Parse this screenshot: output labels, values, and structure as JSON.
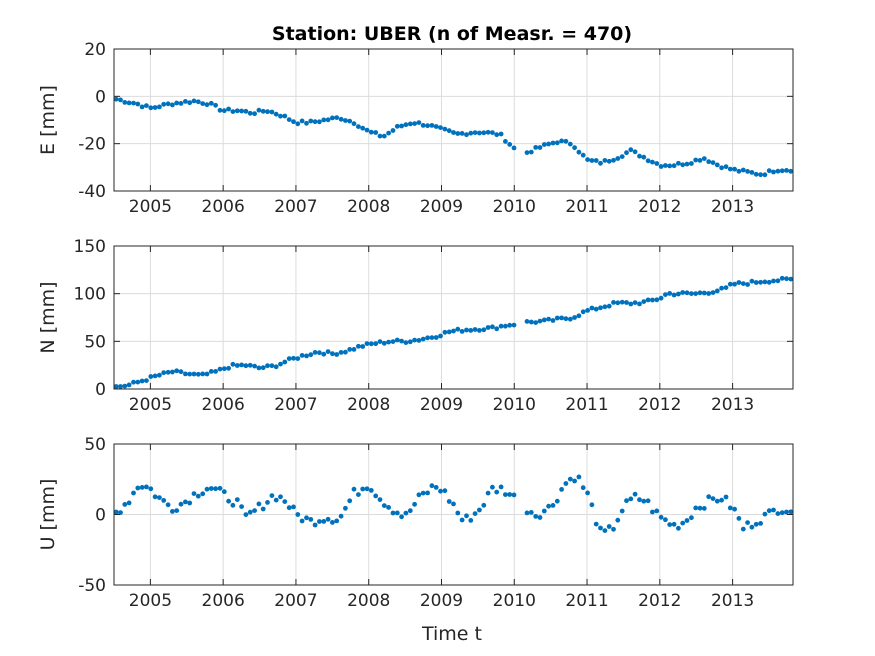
{
  "chart_data": {
    "type": "scatter",
    "title": "Station: UBER (n of Measr. = 470)",
    "xlabel": "Time t",
    "marker_color": "#0072BD",
    "xlim": [
      2004.5,
      2013.83
    ],
    "x_ticks": [
      2005,
      2006,
      2007,
      2008,
      2009,
      2010,
      2011,
      2012,
      2013
    ],
    "grid": true,
    "panels": [
      {
        "id": "E",
        "ylabel": "E [mm]",
        "ylim": [
          -40,
          20
        ],
        "y_ticks": [
          -40,
          -20,
          0,
          20
        ],
        "anchors": [
          [
            2004.5,
            -1
          ],
          [
            2004.8,
            -3
          ],
          [
            2005.0,
            -5
          ],
          [
            2005.3,
            -3
          ],
          [
            2005.6,
            -2
          ],
          [
            2005.8,
            -3
          ],
          [
            2006.0,
            -6
          ],
          [
            2006.2,
            -6
          ],
          [
            2006.4,
            -7
          ],
          [
            2006.6,
            -6
          ],
          [
            2006.8,
            -8
          ],
          [
            2007.0,
            -11
          ],
          [
            2007.2,
            -11
          ],
          [
            2007.4,
            -10
          ],
          [
            2007.6,
            -9
          ],
          [
            2007.8,
            -11
          ],
          [
            2008.0,
            -15
          ],
          [
            2008.2,
            -17
          ],
          [
            2008.4,
            -13
          ],
          [
            2008.6,
            -11
          ],
          [
            2008.8,
            -12
          ],
          [
            2009.0,
            -14
          ],
          [
            2009.2,
            -16
          ],
          [
            2009.5,
            -15
          ],
          [
            2009.8,
            -16
          ],
          [
            2010.0,
            -22
          ],
          [
            2010.15,
            -24
          ],
          [
            2010.4,
            -21
          ],
          [
            2010.6,
            -19
          ],
          [
            2010.8,
            -20
          ],
          [
            2011.0,
            -27
          ],
          [
            2011.2,
            -28
          ],
          [
            2011.4,
            -26
          ],
          [
            2011.6,
            -23
          ],
          [
            2011.8,
            -26
          ],
          [
            2012.0,
            -29
          ],
          [
            2012.2,
            -29
          ],
          [
            2012.4,
            -28
          ],
          [
            2012.6,
            -26
          ],
          [
            2012.8,
            -29
          ],
          [
            2013.0,
            -31
          ],
          [
            2013.2,
            -32
          ],
          [
            2013.4,
            -33
          ],
          [
            2013.6,
            -31
          ],
          [
            2013.83,
            -31
          ]
        ]
      },
      {
        "id": "N",
        "ylabel": "N [mm]",
        "ylim": [
          0,
          150
        ],
        "y_ticks": [
          0,
          50,
          100,
          150
        ],
        "anchors": [
          [
            2004.5,
            2
          ],
          [
            2004.7,
            4
          ],
          [
            2004.9,
            9
          ],
          [
            2005.1,
            14
          ],
          [
            2005.3,
            18
          ],
          [
            2005.5,
            16
          ],
          [
            2005.7,
            14
          ],
          [
            2005.9,
            18
          ],
          [
            2006.1,
            24
          ],
          [
            2006.3,
            25
          ],
          [
            2006.5,
            22
          ],
          [
            2006.7,
            24
          ],
          [
            2006.9,
            30
          ],
          [
            2007.1,
            35
          ],
          [
            2007.3,
            39
          ],
          [
            2007.5,
            37
          ],
          [
            2007.7,
            40
          ],
          [
            2007.9,
            45
          ],
          [
            2008.1,
            48
          ],
          [
            2008.3,
            50
          ],
          [
            2008.5,
            50
          ],
          [
            2008.7,
            52
          ],
          [
            2008.9,
            55
          ],
          [
            2009.1,
            60
          ],
          [
            2009.3,
            62
          ],
          [
            2009.5,
            63
          ],
          [
            2009.7,
            64
          ],
          [
            2009.9,
            67
          ],
          [
            2010.0,
            68
          ],
          [
            2010.15,
            70
          ],
          [
            2010.4,
            71
          ],
          [
            2010.6,
            73
          ],
          [
            2010.8,
            75
          ],
          [
            2011.0,
            82
          ],
          [
            2011.2,
            86
          ],
          [
            2011.4,
            90
          ],
          [
            2011.6,
            90
          ],
          [
            2011.8,
            91
          ],
          [
            2012.0,
            95
          ],
          [
            2012.1,
            100
          ],
          [
            2012.3,
            100
          ],
          [
            2012.5,
            100
          ],
          [
            2012.7,
            102
          ],
          [
            2012.9,
            105
          ],
          [
            2013.0,
            110
          ],
          [
            2013.2,
            111
          ],
          [
            2013.4,
            113
          ],
          [
            2013.6,
            114
          ],
          [
            2013.83,
            115
          ]
        ]
      },
      {
        "id": "U",
        "ylabel": "U [mm]",
        "ylim": [
          -50,
          50
        ],
        "y_ticks": [
          -50,
          0,
          50
        ],
        "anchors": [
          [
            2004.5,
            0
          ],
          [
            2004.7,
            10
          ],
          [
            2004.85,
            22
          ],
          [
            2005.0,
            18
          ],
          [
            2005.15,
            10
          ],
          [
            2005.3,
            5
          ],
          [
            2005.45,
            8
          ],
          [
            2005.6,
            14
          ],
          [
            2005.8,
            20
          ],
          [
            2006.0,
            14
          ],
          [
            2006.2,
            8
          ],
          [
            2006.3,
            -3
          ],
          [
            2006.5,
            5
          ],
          [
            2006.7,
            14
          ],
          [
            2006.85,
            10
          ],
          [
            2007.0,
            0
          ],
          [
            2007.2,
            -5
          ],
          [
            2007.4,
            -2
          ],
          [
            2007.6,
            -3
          ],
          [
            2007.8,
            15
          ],
          [
            2008.0,
            22
          ],
          [
            2008.15,
            12
          ],
          [
            2008.3,
            5
          ],
          [
            2008.5,
            -2
          ],
          [
            2008.7,
            12
          ],
          [
            2008.9,
            20
          ],
          [
            2009.0,
            18
          ],
          [
            2009.15,
            8
          ],
          [
            2009.3,
            -5
          ],
          [
            2009.5,
            2
          ],
          [
            2009.7,
            18
          ],
          [
            2009.85,
            18
          ],
          [
            2010.0,
            12
          ],
          [
            2010.15,
            5
          ],
          [
            2010.3,
            0
          ],
          [
            2010.5,
            5
          ],
          [
            2010.7,
            22
          ],
          [
            2010.85,
            28
          ],
          [
            2011.0,
            15
          ],
          [
            2011.1,
            0
          ],
          [
            2011.2,
            -15
          ],
          [
            2011.35,
            -10
          ],
          [
            2011.5,
            5
          ],
          [
            2011.65,
            12
          ],
          [
            2011.8,
            10
          ],
          [
            2012.0,
            -2
          ],
          [
            2012.2,
            -8
          ],
          [
            2012.35,
            -5
          ],
          [
            2012.5,
            5
          ],
          [
            2012.7,
            10
          ],
          [
            2012.85,
            12
          ],
          [
            2013.0,
            5
          ],
          [
            2013.15,
            -10
          ],
          [
            2013.3,
            -5
          ],
          [
            2013.5,
            0
          ],
          [
            2013.65,
            5
          ],
          [
            2013.83,
            3
          ]
        ]
      }
    ]
  }
}
